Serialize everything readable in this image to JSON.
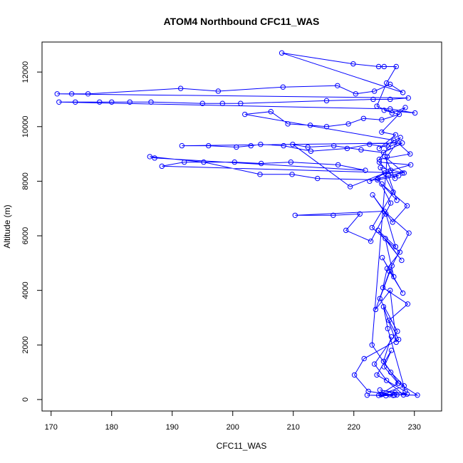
{
  "chart_data": {
    "type": "line",
    "title": "ATOM4 Northbound CFC11_WAS",
    "xlabel": "CFC11_WAS",
    "ylabel": "Altitude (m)",
    "xlim": [
      168.5,
      234.5
    ],
    "ylim": [
      -420,
      13100
    ],
    "xticks": [
      170,
      180,
      190,
      200,
      210,
      220,
      230
    ],
    "yticks": [
      0,
      2000,
      4000,
      6000,
      8000,
      10000,
      12000
    ],
    "grid": false,
    "legend": "none",
    "series_color": "#0000ff",
    "marker": "open-circle",
    "series": [
      {
        "x": [
          224.1,
          227.3,
          225.0,
          226.2,
          223.8,
          228.5,
          225.6,
          224.9,
          227.0,
          226.0,
          223.6,
          225.9,
          228.1,
          224.7,
          226.6,
          225.2,
          227.9,
          224.0,
          226.9,
          225.3,
          223.1,
          226.4,
          228.8,
          224.6,
          227.1,
          225.7,
          222.6,
          226.1,
          229.4,
          224.2,
          226.8,
          225.1,
          228.3,
          224.4,
          226.5,
          223.0,
          227.6,
          225.5,
          224.8,
          228.9,
          225.8,
          227.4,
          221.7,
          220.1,
          222.4,
          226.7,
          224.5,
          228.2,
          225.4,
          223.4,
          227.2,
          224.3,
          226.3,
          229.1,
          225.0,
          210.3,
          216.6,
          221.0,
          218.7,
          222.8,
          226.1,
          224.0,
          228.0,
          188.3,
          192.0,
          200.3,
          204.7,
          209.6,
          217.4,
          221.9,
          187.1,
          186.3,
          195.2,
          204.5,
          209.8,
          214.0,
          223.9,
          227.4,
          225.1,
          219.4,
          209.9,
          212.4,
          216.7,
          221.2,
          224.9,
          228.0,
          191.6,
          196.0,
          200.6,
          203.0,
          204.6,
          208.4,
          212.9,
          218.9,
          222.6,
          225.7,
          227.3,
          229.3,
          224.2,
          226.6,
          202.0,
          206.3,
          209.1,
          212.8,
          215.5,
          219.1,
          221.6,
          224.6,
          227.5,
          225.0,
          230.1,
          226.0,
          171.3,
          174.0,
          178.0,
          180.0,
          183.0,
          186.5,
          195.0,
          198.3,
          201.3,
          215.5,
          223.2,
          226.0,
          229.0,
          171.0,
          173.4,
          176.1,
          191.4,
          197.6,
          208.3,
          217.3,
          220.3,
          223.4,
          226.0,
          228.1,
          208.1,
          219.9,
          224.1,
          225.0,
          227.0,
          225.4,
          223.8,
          226.3,
          228.5,
          224.6,
          226.9,
          224.2,
          227.7,
          225.5,
          223.0,
          226.1,
          228.3,
          224.7,
          226.5,
          222.2,
          225.3,
          227.1,
          228.8,
          224.3,
          226.8,
          225.9,
          230.5,
          227.4,
          224.9,
          226.2
        ],
        "y": [
          150,
          600,
          1200,
          1800,
          900,
          300,
          2600,
          3400,
          2100,
          4000,
          3300,
          4700,
          3900,
          5200,
          4500,
          5900,
          5100,
          6200,
          5600,
          6800,
          7500,
          6500,
          7100,
          7900,
          7300,
          8200,
          8000,
          8400,
          8600,
          8700,
          8100,
          8900,
          8300,
          8500,
          7600,
          6300,
          5400,
          4800,
          4100,
          3500,
          2900,
          2200,
          1500,
          900,
          300,
          160,
          180,
          170,
          700,
          1300,
          2500,
          3700,
          4900,
          6100,
          6900,
          6750,
          6750,
          6800,
          6200,
          5800,
          7200,
          8100,
          8300,
          8550,
          8700,
          8700,
          8650,
          8700,
          8600,
          8400,
          8850,
          8900,
          8700,
          8250,
          8250,
          8100,
          8050,
          8200,
          8300,
          7800,
          9350,
          9250,
          9300,
          9150,
          9050,
          9400,
          9300,
          9300,
          9250,
          9300,
          9350,
          9300,
          9100,
          9200,
          9350,
          9250,
          9400,
          9000,
          8800,
          9500,
          10450,
          10550,
          10100,
          10050,
          10000,
          10100,
          10300,
          10250,
          10450,
          10600,
          10500,
          10650,
          10900,
          10900,
          10900,
          10900,
          10900,
          10900,
          10850,
          10850,
          10850,
          10950,
          11000,
          11000,
          11050,
          11200,
          11200,
          11200,
          11400,
          11300,
          11450,
          11500,
          11200,
          11300,
          11550,
          11250,
          12700,
          12300,
          12200,
          12200,
          12200,
          11600,
          10750,
          10500,
          10700,
          9800,
          9700,
          9200,
          9600,
          8900,
          2000,
          1000,
          500,
          200,
          150,
          160,
          140,
          170,
          200,
          350,
          250,
          180,
          160,
          600,
          1400,
          2300
        ]
      }
    ]
  }
}
